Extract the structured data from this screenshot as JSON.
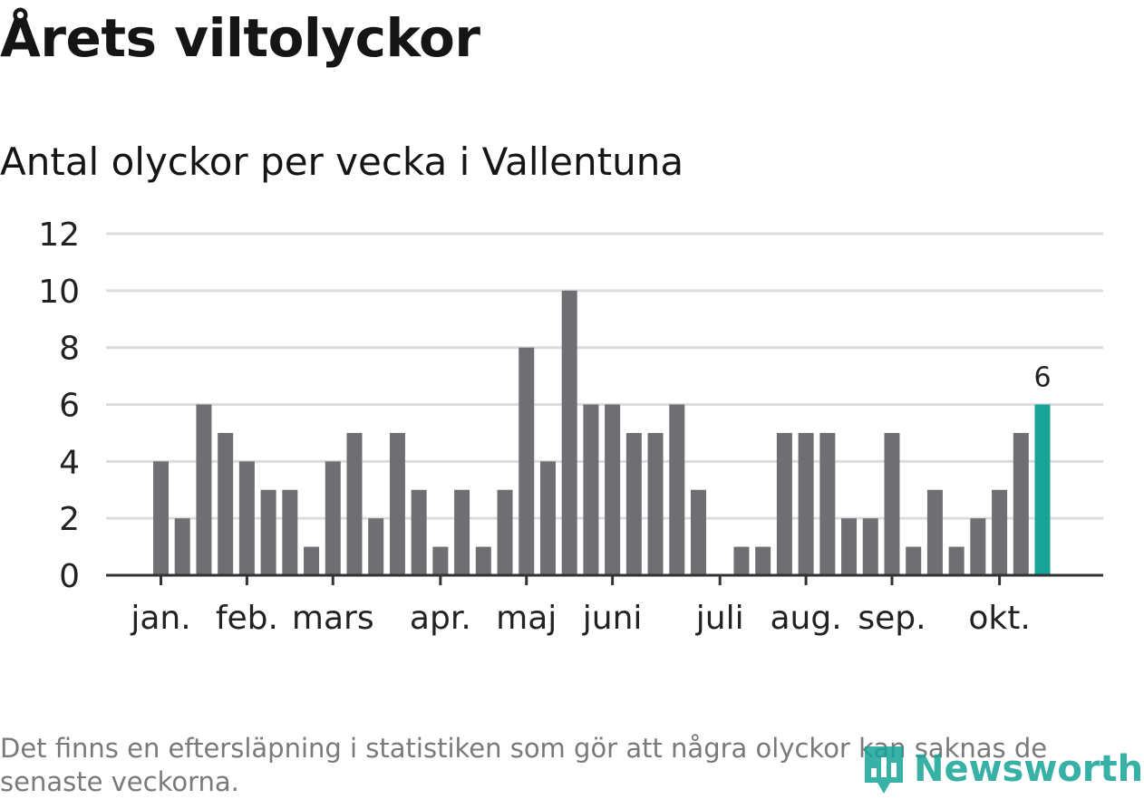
{
  "header": {
    "title": "Årets viltolyckor",
    "subtitle": "Antal olyckor per vecka i Vallentuna"
  },
  "footer": {
    "note": "Det finns en eftersläpning i statistiken som gör att några olyckor kan saknas de senaste veckorna.",
    "brand": "Newsworthy",
    "brand_icon": "bar-chart-pin-icon"
  },
  "colors": {
    "bar": "#6f6e73",
    "highlight": "#17a398",
    "grid": "#dcdcdc",
    "axis": "#333333",
    "text": "#222222"
  },
  "chart_data": {
    "type": "bar",
    "ylim": [
      0,
      12
    ],
    "yticks": [
      0,
      2,
      4,
      6,
      8,
      10,
      12
    ],
    "grid": true,
    "months": [
      {
        "label": "jan.",
        "week": 1
      },
      {
        "label": "feb.",
        "week": 5
      },
      {
        "label": "mars",
        "week": 9
      },
      {
        "label": "apr.",
        "week": 14
      },
      {
        "label": "maj",
        "week": 18
      },
      {
        "label": "juni",
        "week": 22
      },
      {
        "label": "juli",
        "week": 27
      },
      {
        "label": "aug.",
        "week": 31
      },
      {
        "label": "sep.",
        "week": 35
      },
      {
        "label": "okt.",
        "week": 40
      }
    ],
    "values": [
      4,
      2,
      6,
      5,
      4,
      3,
      3,
      1,
      4,
      5,
      2,
      5,
      3,
      1,
      3,
      1,
      3,
      8,
      4,
      10,
      6,
      6,
      5,
      5,
      6,
      3,
      0,
      1,
      1,
      5,
      5,
      5,
      2,
      2,
      5,
      1,
      3,
      1,
      2,
      3,
      5,
      6
    ],
    "highlight_index": 41,
    "highlight_label": "6"
  }
}
